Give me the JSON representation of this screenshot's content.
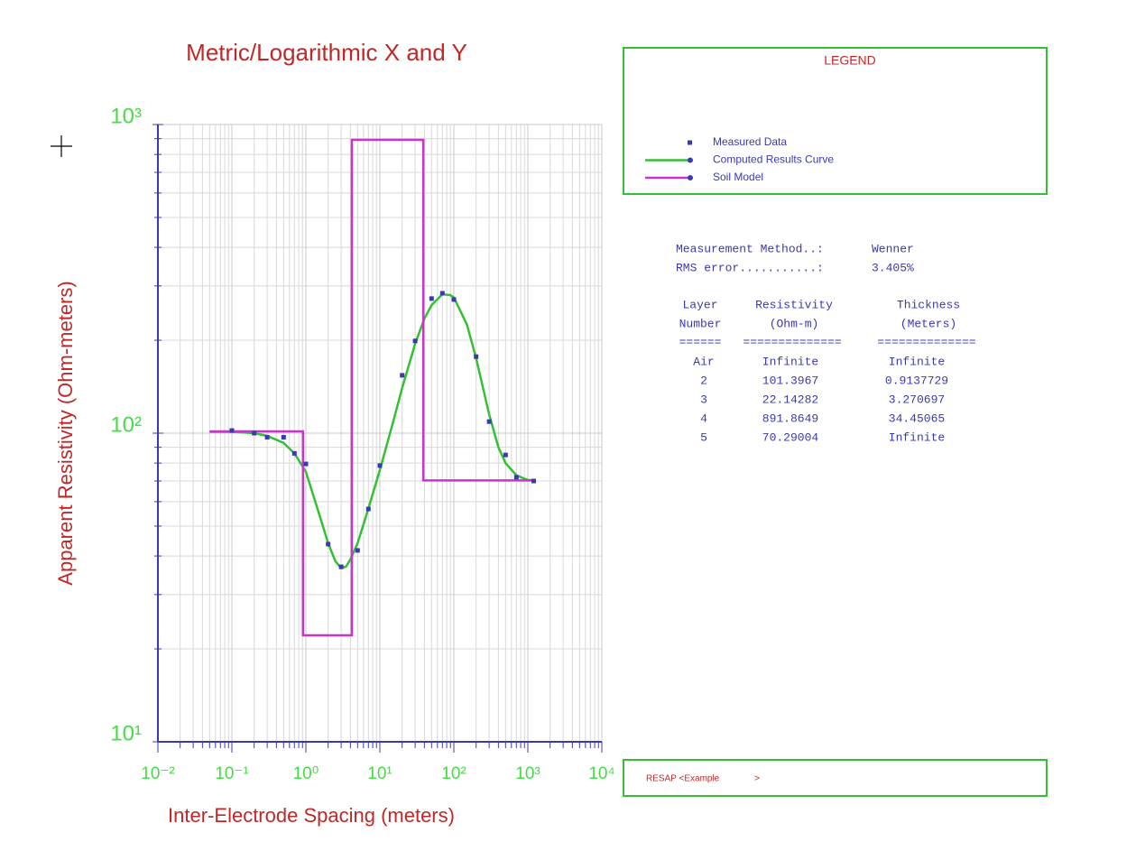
{
  "chart_data": {
    "type": "line",
    "title": "Metric/Logarithmic X and Y",
    "x_label": "Inter-Electrode Spacing (meters)",
    "y_label": "Apparent Resistivity (Ohm-meters)",
    "xscale": "log",
    "yscale": "log",
    "grid": true,
    "xlim": [
      0.01,
      10000
    ],
    "xticks": [
      {
        "value": 0.01,
        "label": "10⁻²"
      },
      {
        "value": 0.1,
        "label": "10⁻¹"
      },
      {
        "value": 1,
        "label": "10⁰"
      },
      {
        "value": 10,
        "label": "10¹"
      },
      {
        "value": 100,
        "label": "10²"
      },
      {
        "value": 1000,
        "label": "10³"
      },
      {
        "value": 10000,
        "label": "10⁴"
      }
    ],
    "ylim": [
      10,
      1000
    ],
    "yticks": [
      {
        "value": 10,
        "label": "10¹"
      },
      {
        "value": 100,
        "label": "10²"
      },
      {
        "value": 1000,
        "label": "10³"
      }
    ],
    "legend_title": "LEGEND",
    "series": [
      {
        "name": "Measured Data",
        "kind": "scatter",
        "color": "#3a3ab0",
        "x": [
          0.1,
          0.2,
          0.3,
          0.5,
          0.7,
          1,
          2,
          3,
          5,
          7,
          10,
          20,
          30,
          50,
          70,
          100,
          200,
          300,
          500,
          700,
          1200
        ],
        "values": [
          102,
          100,
          97,
          97,
          86,
          79.5,
          43.7,
          36.9,
          41.7,
          56.8,
          78.5,
          154,
          199,
          273,
          284,
          271,
          177,
          109,
          85,
          72,
          70
        ]
      },
      {
        "name": "Computed Results Curve",
        "kind": "line",
        "color": "#33c033",
        "x": [
          0.05,
          0.1,
          0.2,
          0.3,
          0.5,
          0.7,
          1,
          1.5,
          2,
          2.5,
          3,
          3.5,
          4,
          5,
          7,
          10,
          15,
          20,
          30,
          40,
          50,
          70,
          90,
          100,
          150,
          200,
          300,
          400,
          500,
          700,
          1000,
          1200
        ],
        "values": [
          101,
          101,
          100,
          98,
          93,
          86,
          75,
          55,
          44,
          38.5,
          36.5,
          37,
          39,
          44,
          57,
          76,
          108,
          140,
          195,
          235,
          260,
          282,
          280,
          275,
          225,
          175,
          115,
          90,
          80,
          73,
          70.5,
          70.3
        ]
      },
      {
        "name": "Soil Model",
        "kind": "line",
        "color": "#cc33cc",
        "x": [
          0.05,
          0.9138,
          0.9138,
          4.184,
          4.184,
          38.63,
          38.63,
          1200
        ],
        "values": [
          101.4,
          101.4,
          22.14,
          22.14,
          891.9,
          891.9,
          70.29,
          70.29
        ]
      }
    ]
  },
  "panel": {
    "summary": [
      {
        "label": "Measurement Method..:",
        "value": "Wenner"
      },
      {
        "label": "RMS error...........:",
        "value": "3.405%"
      }
    ],
    "headers": [
      [
        "Layer",
        "Number"
      ],
      [
        "Resistivity",
        "(Ohm-m)"
      ],
      [
        "Thickness",
        "(Meters)"
      ]
    ],
    "separators": [
      "======",
      "==============",
      "=============="
    ],
    "rows": [
      [
        "Air",
        "Infinite",
        "Infinite"
      ],
      [
        "2",
        "101.3967",
        "0.9137729"
      ],
      [
        "3",
        "22.14282",
        "3.270697"
      ],
      [
        "4",
        "891.8649",
        "34.45065"
      ],
      [
        "5",
        "70.29004",
        "Infinite"
      ]
    ]
  },
  "footer": {
    "text": "RESAP <Example              >"
  }
}
